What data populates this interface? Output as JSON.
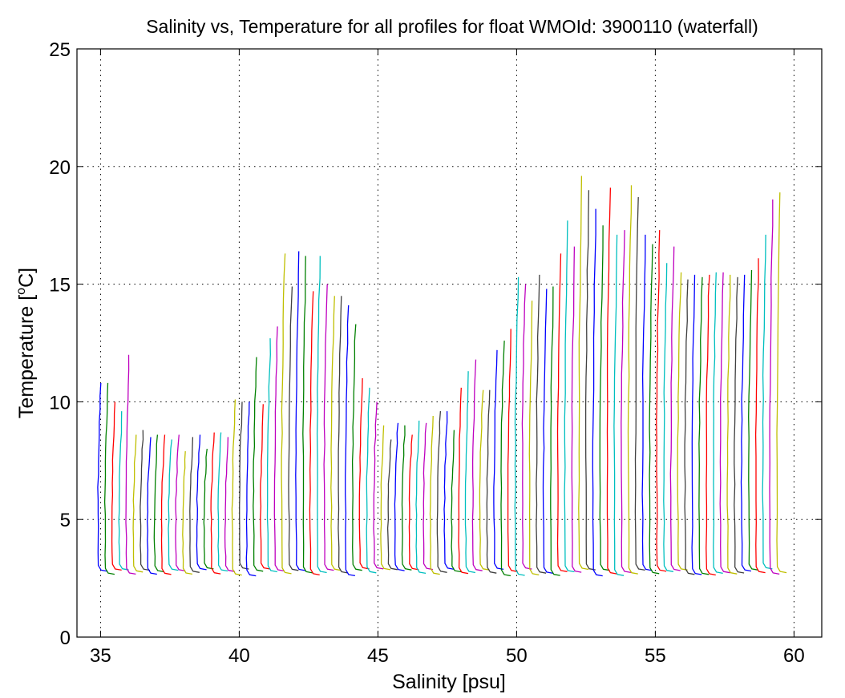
{
  "chart_data": {
    "type": "line",
    "title": "Salinity vs, Temperature for all profiles for float WMOId: 3900110 (waterfall)",
    "xlabel": "Salinity [psu]",
    "ylabel": "Temperature [",
    "ylabel_sup": "o",
    "ylabel_end": "C]",
    "xlim": [
      34.15,
      61.0
    ],
    "ylim": [
      0,
      25
    ],
    "xticks": [
      35,
      40,
      45,
      50,
      55,
      60
    ],
    "yticks": [
      0,
      5,
      10,
      15,
      20,
      25
    ],
    "grid": true,
    "legend": "none",
    "series_colors": [
      "#0000ff",
      "#008000",
      "#ff0000",
      "#00bfbf",
      "#bf00bf",
      "#bfbf00",
      "#404040"
    ],
    "profile_count": 97,
    "profile_x_start": 34.9,
    "profile_x_step": 0.255,
    "profile_top_temperatures": [
      10.8,
      10.8,
      10.0,
      9.6,
      12.0,
      8.6,
      8.8,
      8.5,
      8.6,
      8.6,
      8.4,
      8.6,
      7.9,
      8.5,
      8.6,
      8.0,
      8.7,
      8.7,
      8.5,
      10.1,
      10.0,
      10.0,
      11.9,
      9.9,
      12.7,
      13.2,
      16.3,
      14.9,
      16.4,
      16.2,
      14.7,
      16.2,
      15.0,
      14.5,
      14.5,
      14.1,
      13.3,
      11.0,
      10.6,
      10.0,
      9.0,
      8.4,
      9.1,
      9.0,
      8.6,
      9.2,
      9.1,
      9.4,
      9.6,
      9.6,
      8.8,
      10.6,
      11.3,
      11.8,
      10.5,
      10.5,
      12.2,
      12.6,
      13.1,
      15.3,
      15.0,
      14.3,
      15.4,
      14.8,
      14.9,
      16.3,
      17.7,
      16.6,
      19.6,
      19.0,
      18.2,
      17.5,
      19.1,
      17.1,
      17.3,
      19.2,
      18.7,
      17.1,
      16.7,
      17.3,
      15.9,
      16.6,
      15.5,
      15.2,
      15.4,
      15.3,
      15.4,
      15.5,
      15.5,
      15.4,
      15.3,
      15.4,
      15.6,
      16.1,
      17.1,
      18.6,
      18.9
    ],
    "profile_bottom_temperature_range": [
      2.6,
      2.9
    ]
  }
}
